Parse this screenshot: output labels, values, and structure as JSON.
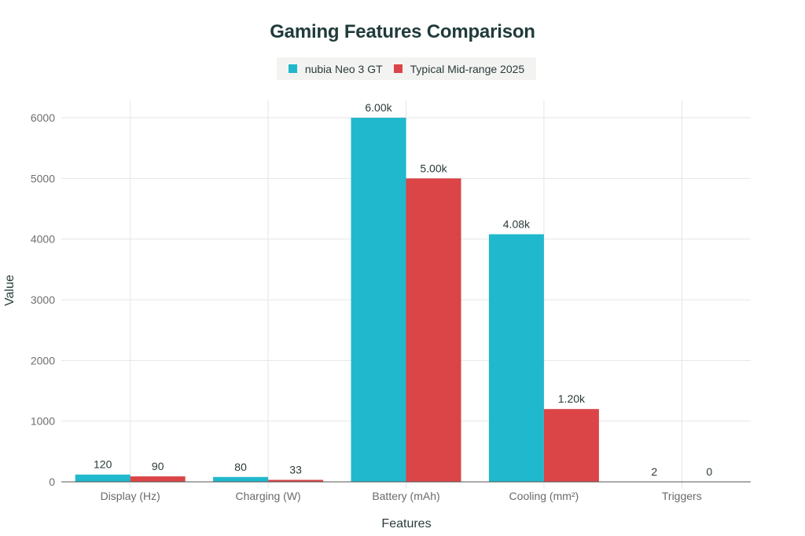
{
  "title": "Gaming Features Comparison",
  "legend": [
    {
      "label": "nubia Neo 3 GT",
      "color": "#20b8cc"
    },
    {
      "label": "Typical Mid-range 2025",
      "color": "#db4547"
    }
  ],
  "chart_data": {
    "type": "bar",
    "title": "Gaming Features Comparison",
    "xlabel": "Features",
    "ylabel": "Value",
    "categories": [
      "Display (Hz)",
      "Charging (W)",
      "Battery (mAh)",
      "Cooling (mm²)",
      "Triggers"
    ],
    "series": [
      {
        "name": "nubia Neo 3 GT",
        "color": "#20b8cc",
        "values": [
          120,
          80,
          6000,
          4080,
          2
        ],
        "labels": [
          "120",
          "80",
          "6.00k",
          "4.08k",
          "2"
        ]
      },
      {
        "name": "Typical Mid-range 2025",
        "color": "#db4547",
        "values": [
          90,
          33,
          5000,
          1200,
          0
        ],
        "labels": [
          "90",
          "33",
          "5.00k",
          "1.20k",
          "0"
        ]
      }
    ],
    "yticks": [
      0,
      1000,
      2000,
      3000,
      4000,
      5000,
      6000
    ],
    "ylim": [
      0,
      6300
    ],
    "grid": true,
    "legend_position": "top-center"
  }
}
